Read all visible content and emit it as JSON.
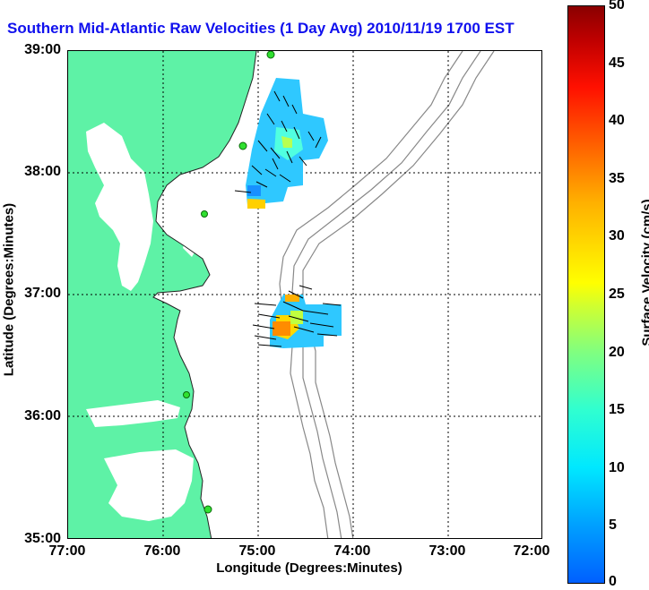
{
  "title": "Southern Mid-Atlantic Raw Velocities (1 Day Avg) 2010/11/19 1700 EST",
  "axes": {
    "xlabel": "Longitude (Degrees:Minutes)",
    "ylabel": "Latitude (Degrees:Minutes)",
    "x_ticks": [
      "77:00",
      "76:00",
      "75:00",
      "74:00",
      "73:00",
      "72:00"
    ],
    "y_ticks": [
      "39:00",
      "38:00",
      "37:00",
      "36:00",
      "35:00"
    ]
  },
  "colorbar": {
    "label": "Surface Velocity (cm/s)",
    "ticks": [
      "50",
      "45",
      "40",
      "35",
      "30",
      "25",
      "20",
      "15",
      "10",
      "5",
      "0"
    ]
  },
  "colors": {
    "land": "#5ef2a6",
    "title": "#1010ee",
    "grid": "#000000",
    "bathymetry": "#888888"
  }
}
